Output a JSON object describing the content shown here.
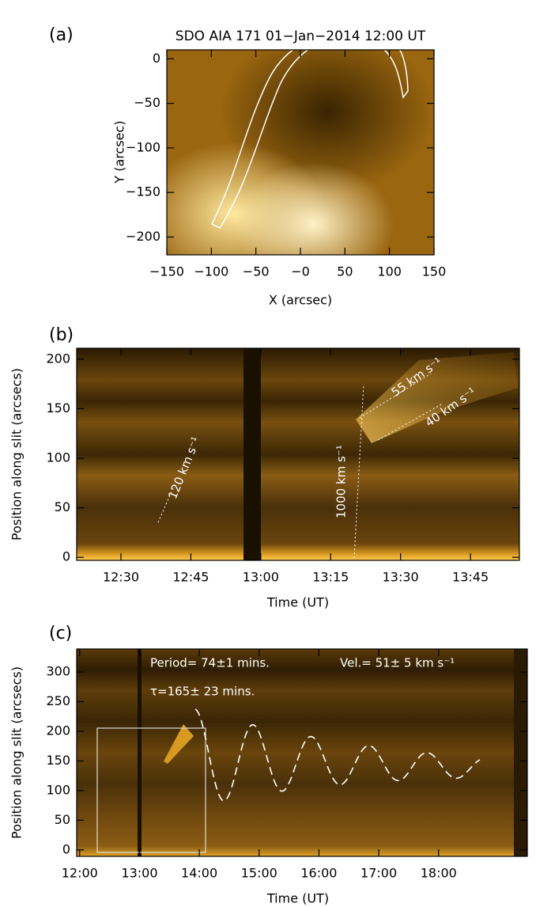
{
  "chart_data": [
    {
      "type": "image",
      "panel_label": "(a)",
      "title": "SDO AIA 171 01−Jan−2014 12:00 UT",
      "xlabel": "X (arcsec)",
      "ylabel": "Y (arcsec)",
      "xlim": [
        -150,
        150
      ],
      "ylim": [
        -220,
        10
      ],
      "xticks": [
        {
          "value": -150,
          "label": "−150"
        },
        {
          "value": -100,
          "label": "−100"
        },
        {
          "value": -50,
          "label": "−50"
        },
        {
          "value": 0,
          "label": "−0"
        },
        50,
        100,
        150
      ],
      "yticks": [
        0,
        {
          "value": -50,
          "label": "−50"
        },
        {
          "value": -100,
          "label": "−100"
        },
        {
          "value": -150,
          "label": "−150"
        },
        {
          "value": -200,
          "label": "−200"
        }
      ],
      "annotations": []
    },
    {
      "type": "image",
      "panel_label": "(b)",
      "xlabel": "Time (UT)",
      "ylabel": "Position along slit (arcsecs)",
      "xlim": [
        20.5,
        115.5
      ],
      "ylim": [
        -3,
        211
      ],
      "xticks": [
        {
          "value": 30,
          "label": "12:30"
        },
        {
          "value": 45,
          "label": "12:45"
        },
        {
          "value": 60,
          "label": "13:00"
        },
        {
          "value": 75,
          "label": "13:15"
        },
        {
          "value": 90,
          "label": "13:30"
        },
        {
          "value": 105,
          "label": "13:45"
        }
      ],
      "yticks": [
        0,
        50,
        100,
        150,
        200
      ],
      "annotations": [
        "120 km s⁻¹",
        "1000 km s⁻¹",
        "55 km s⁻¹",
        "40 km s⁻¹"
      ]
    },
    {
      "type": "image",
      "panel_label": "(c)",
      "xlabel": "Time (UT)",
      "ylabel": "Position along slit (arcsecs)",
      "xlim": [
        -3,
        449
      ],
      "ylim": [
        -11,
        339
      ],
      "xticks": [
        {
          "value": 0,
          "label": "12:00"
        },
        {
          "value": 60,
          "label": "13:00"
        },
        {
          "value": 120,
          "label": "14:00"
        },
        {
          "value": 180,
          "label": "15:00"
        },
        {
          "value": 240,
          "label": "16:00"
        },
        {
          "value": 300,
          "label": "17:00"
        },
        {
          "value": 360,
          "label": "18:00"
        }
      ],
      "yticks": [
        0,
        50,
        100,
        150,
        200,
        250,
        300
      ],
      "annotations": [
        "Period= 74±1 mins.",
        "Vel.= 51± 5 km s⁻¹",
        "τ=165± 23 mins."
      ]
    }
  ]
}
